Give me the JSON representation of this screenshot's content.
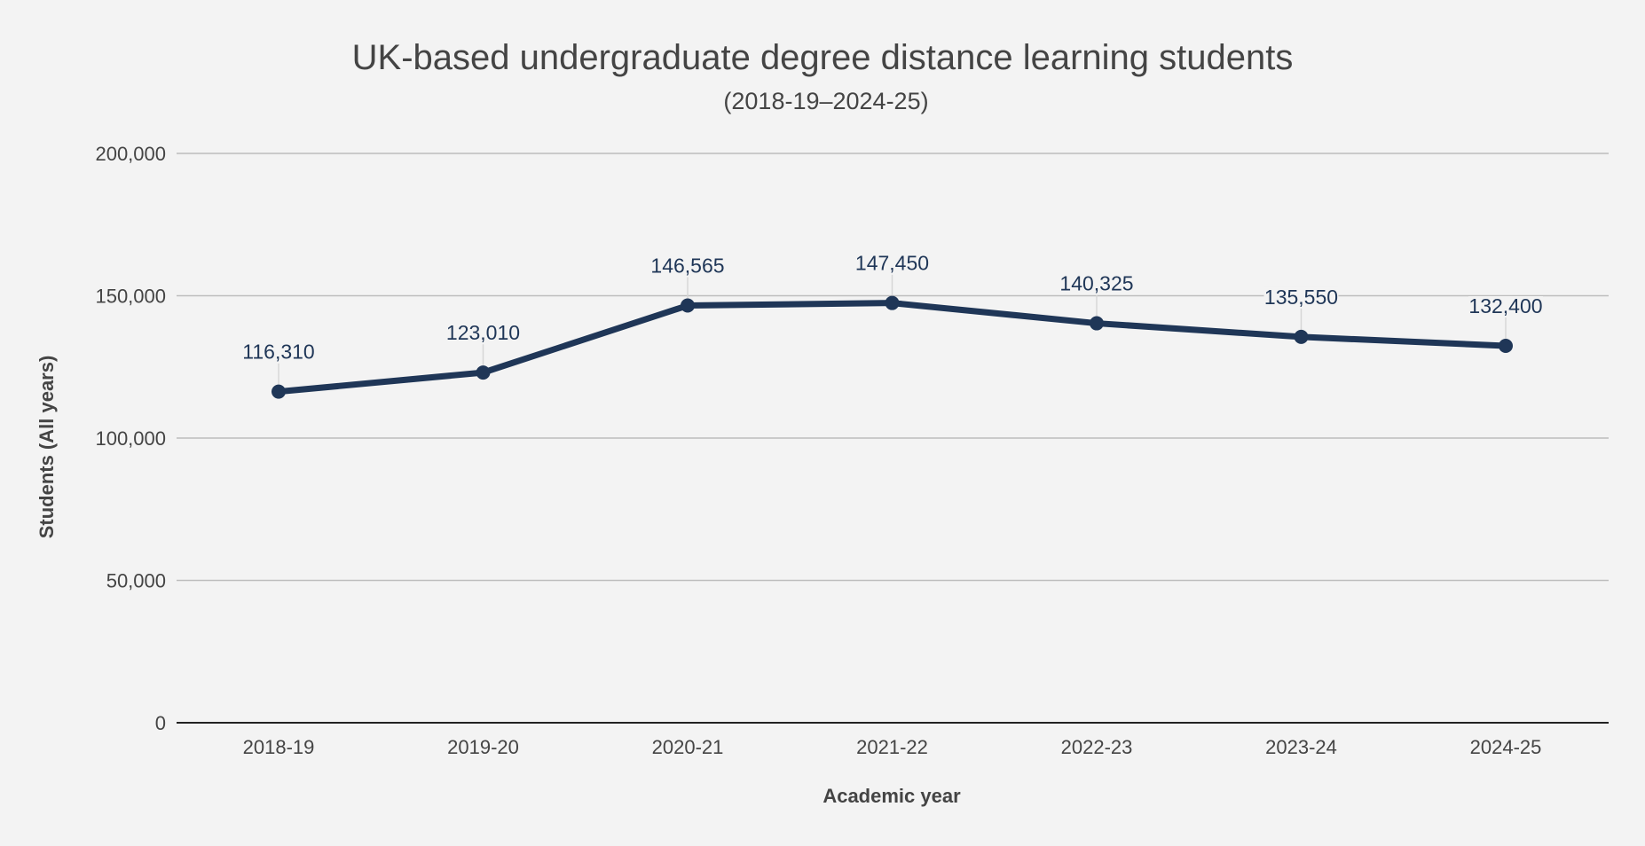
{
  "chart_data": {
    "type": "line",
    "title": "UK-based undergraduate degree distance learning students",
    "subtitle": "(2018-19–2024-25)",
    "xlabel": "Academic year",
    "ylabel": "Students (All years)",
    "categories": [
      "2018-19",
      "2019-20",
      "2020-21",
      "2021-22",
      "2022-23",
      "2023-24",
      "2024-25"
    ],
    "series": [
      {
        "name": "Students (All years)",
        "values": [
          116310,
          123010,
          146565,
          147450,
          140325,
          135550,
          132400
        ],
        "labels": [
          "116,310",
          "123,010",
          "146,565",
          "147,450",
          "140,325",
          "135,550",
          "132,400"
        ],
        "color": "#1f3657"
      }
    ],
    "ylim": [
      0,
      200000
    ],
    "yticks": [
      0,
      50000,
      100000,
      150000,
      200000
    ],
    "ytick_labels": [
      "0",
      "50,000",
      "100,000",
      "150,000",
      "200,000"
    ],
    "grid": true,
    "legend": "none",
    "data_labels": true
  },
  "colors": {
    "background": "#f3f3f3",
    "line": "#1f3657",
    "gridline": "#bdbdbd",
    "axis": "#222222",
    "text": "#444444"
  }
}
